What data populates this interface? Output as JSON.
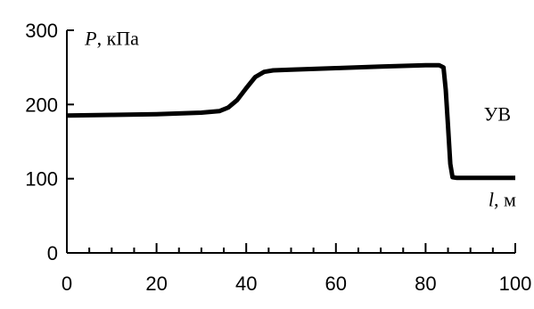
{
  "chart_data": {
    "type": "line",
    "title": "",
    "xlim": [
      0,
      100
    ],
    "ylim": [
      0,
      300
    ],
    "x_major_ticks": [
      0,
      20,
      40,
      60,
      80,
      100
    ],
    "x_minor_ticks": [
      5,
      10,
      15,
      25,
      30,
      35,
      45,
      50,
      55,
      65,
      70,
      75,
      85,
      90,
      95
    ],
    "y_major_ticks": [
      0,
      100,
      200,
      300
    ],
    "x_tick_labels": [
      "0",
      "20",
      "40",
      "60",
      "80",
      "100"
    ],
    "y_tick_labels": [
      "0",
      "100",
      "200",
      "300"
    ],
    "grid": false,
    "series": [
      {
        "x": [
          0,
          10,
          20,
          30,
          34,
          36,
          38,
          40,
          42,
          44,
          46,
          50,
          60,
          70,
          80,
          83,
          84,
          84.5,
          85,
          85.5,
          86,
          87,
          90,
          95,
          100
        ],
        "y": [
          185,
          186,
          187,
          189,
          191,
          196,
          206,
          222,
          237,
          244,
          246,
          247,
          249,
          251,
          253,
          253,
          250,
          220,
          170,
          120,
          102,
          101,
          101,
          101,
          101
        ]
      }
    ],
    "annotations": [
      {
        "id": "ylabel",
        "prefix": "P",
        "text": ", кПа",
        "x": 4,
        "y": 280
      },
      {
        "id": "xlabel",
        "prefix": "l",
        "text": ", м",
        "x": 94,
        "y": 63
      },
      {
        "id": "uv",
        "prefix": "",
        "text": "УВ",
        "x": 93,
        "y": 178
      }
    ]
  }
}
